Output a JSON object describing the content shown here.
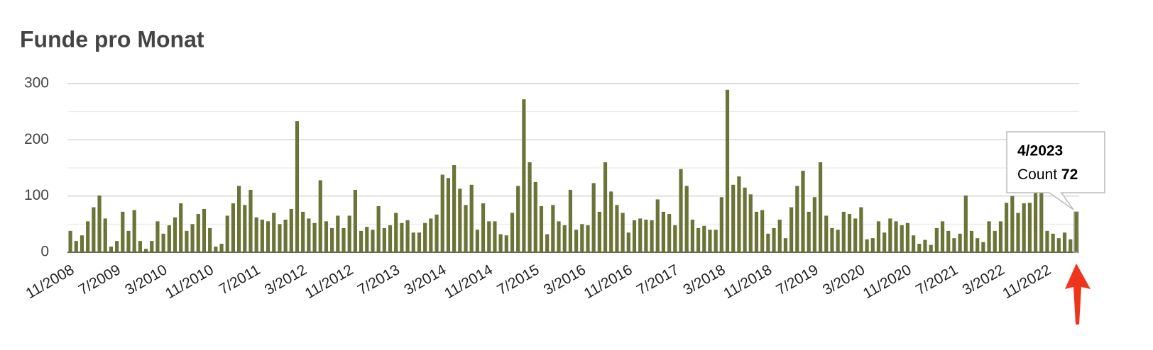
{
  "chart_data": {
    "type": "bar",
    "title": "Funde pro Monat",
    "categories": [
      "11/2008",
      null,
      null,
      null,
      null,
      null,
      null,
      null,
      "7/2009",
      null,
      null,
      null,
      null,
      null,
      null,
      null,
      "3/2010",
      null,
      null,
      null,
      null,
      null,
      null,
      null,
      "11/2010",
      null,
      null,
      null,
      null,
      null,
      null,
      null,
      "7/2011",
      null,
      null,
      null,
      null,
      null,
      null,
      null,
      "3/2012",
      null,
      null,
      null,
      null,
      null,
      null,
      null,
      "11/2012",
      null,
      null,
      null,
      null,
      null,
      null,
      null,
      "7/2013",
      null,
      null,
      null,
      null,
      null,
      null,
      null,
      "3/2014",
      null,
      null,
      null,
      null,
      null,
      null,
      null,
      "11/2014",
      null,
      null,
      null,
      null,
      null,
      null,
      null,
      "7/2015",
      null,
      null,
      null,
      null,
      null,
      null,
      null,
      "3/2016",
      null,
      null,
      null,
      null,
      null,
      null,
      null,
      "11/2016",
      null,
      null,
      null,
      null,
      null,
      null,
      null,
      "7/2017",
      null,
      null,
      null,
      null,
      null,
      null,
      null,
      "3/2018",
      null,
      null,
      null,
      null,
      null,
      null,
      null,
      "11/2018",
      null,
      null,
      null,
      null,
      null,
      null,
      null,
      "7/2019",
      null,
      null,
      null,
      null,
      null,
      null,
      null,
      "3/2020",
      null,
      null,
      null,
      null,
      null,
      null,
      null,
      "11/2020",
      null,
      null,
      null,
      null,
      null,
      null,
      null,
      "7/2021",
      null,
      null,
      null,
      null,
      null,
      null,
      null,
      "3/2022",
      null,
      null,
      null,
      null,
      null,
      null,
      null,
      "11/2022",
      null,
      null,
      null,
      null,
      "4/2023"
    ],
    "series": [
      {
        "name": "Count",
        "color": "#6b7436",
        "values": [
          38,
          20,
          30,
          55,
          80,
          101,
          60,
          10,
          20,
          72,
          38,
          75,
          20,
          6,
          20,
          55,
          33,
          48,
          62,
          87,
          38,
          50,
          68,
          77,
          43,
          10,
          15,
          65,
          87,
          118,
          84,
          111,
          62,
          58,
          55,
          70,
          50,
          58,
          77,
          233,
          72,
          60,
          52,
          128,
          55,
          43,
          65,
          43,
          65,
          111,
          38,
          45,
          40,
          82,
          43,
          48,
          70,
          52,
          57,
          35,
          35,
          52,
          60,
          67,
          138,
          132,
          155,
          113,
          84,
          120,
          40,
          87,
          55,
          55,
          32,
          30,
          70,
          118,
          272,
          160,
          125,
          82,
          32,
          84,
          55,
          48,
          111,
          40,
          50,
          48,
          123,
          72,
          160,
          108,
          84,
          70,
          35,
          57,
          60,
          58,
          57,
          94,
          72,
          68,
          48,
          148,
          118,
          58,
          43,
          47,
          40,
          40,
          98,
          289,
          120,
          135,
          115,
          103,
          72,
          75,
          33,
          43,
          58,
          25,
          80,
          118,
          145,
          72,
          98,
          160,
          65,
          43,
          40,
          72,
          68,
          60,
          80,
          23,
          25,
          55,
          35,
          60,
          55,
          48,
          52,
          30,
          15,
          22,
          13,
          43,
          55,
          38,
          25,
          33,
          101,
          38,
          25,
          18,
          55,
          38,
          55,
          88,
          100,
          70,
          87,
          88,
          110,
          110,
          38,
          33,
          25,
          35,
          23,
          72
        ]
      }
    ],
    "ylim": [
      0,
      300
    ],
    "yticks": [
      0,
      100,
      200,
      300
    ],
    "minor_yticks": [
      50,
      150,
      250
    ],
    "grid": true,
    "tooltip_index": 173
  }
}
